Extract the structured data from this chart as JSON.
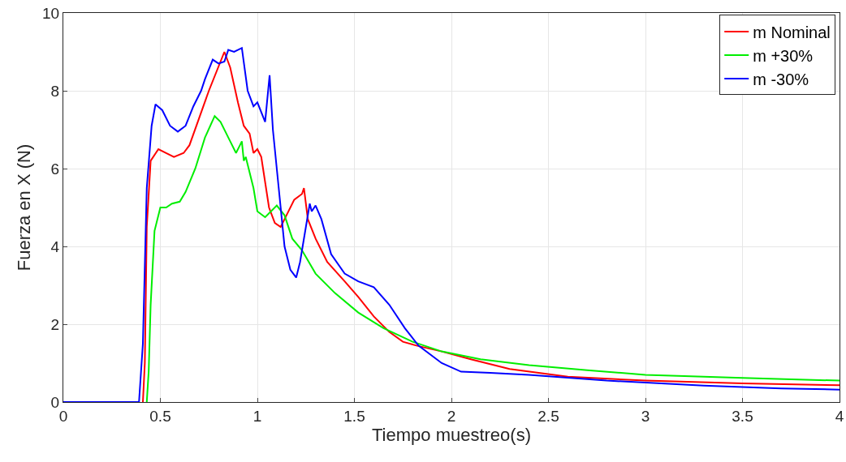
{
  "chart_data": {
    "type": "line",
    "xlabel": "Tiempo muestreo(s)",
    "ylabel": "Fuerza en X (N)",
    "xlim": [
      0,
      4
    ],
    "ylim": [
      0,
      10
    ],
    "xticks": [
      0,
      0.5,
      1,
      1.5,
      2,
      2.5,
      3,
      3.5,
      4
    ],
    "yticks": [
      0,
      2,
      4,
      6,
      8,
      10
    ],
    "grid": true,
    "legend": "top right",
    "marker": "none",
    "line_style": "solid",
    "series": [
      {
        "name": "m Nominal",
        "color": "#ff0000",
        "x": [
          0.41,
          0.42,
          0.43,
          0.45,
          0.49,
          0.53,
          0.57,
          0.62,
          0.65,
          0.7,
          0.75,
          0.79,
          0.83,
          0.86,
          0.9,
          0.93,
          0.96,
          0.98,
          1.0,
          1.02,
          1.06,
          1.09,
          1.12,
          1.15,
          1.19,
          1.23,
          1.24,
          1.26,
          1.3,
          1.36,
          1.45,
          1.52,
          1.6,
          1.68,
          1.75,
          1.82,
          1.95,
          2.1,
          2.3,
          2.6,
          3.0,
          3.5,
          4.0
        ],
        "values": [
          0,
          1.0,
          4.5,
          6.2,
          6.5,
          6.4,
          6.3,
          6.4,
          6.6,
          7.3,
          8.0,
          8.5,
          9.0,
          8.6,
          7.7,
          7.1,
          6.9,
          6.4,
          6.5,
          6.3,
          5.0,
          4.6,
          4.5,
          4.8,
          5.2,
          5.35,
          5.5,
          4.7,
          4.2,
          3.6,
          3.1,
          2.7,
          2.2,
          1.8,
          1.55,
          1.45,
          1.3,
          1.1,
          0.85,
          0.65,
          0.55,
          0.48,
          0.43
        ]
      },
      {
        "name": "m +30%",
        "color": "#00ee00",
        "x": [
          0.43,
          0.44,
          0.45,
          0.47,
          0.5,
          0.53,
          0.56,
          0.6,
          0.63,
          0.68,
          0.73,
          0.78,
          0.81,
          0.86,
          0.89,
          0.905,
          0.92,
          0.93,
          0.94,
          0.98,
          1.0,
          1.04,
          1.07,
          1.1,
          1.14,
          1.18,
          1.23,
          1.3,
          1.4,
          1.52,
          1.65,
          1.8,
          1.95,
          2.15,
          2.4,
          2.7,
          3.0,
          3.5,
          4.0
        ],
        "values": [
          0,
          0.8,
          2.5,
          4.4,
          5.0,
          5.0,
          5.1,
          5.15,
          5.4,
          6.0,
          6.8,
          7.35,
          7.2,
          6.7,
          6.4,
          6.55,
          6.7,
          6.2,
          6.3,
          5.5,
          4.9,
          4.75,
          4.9,
          5.05,
          4.8,
          4.2,
          3.9,
          3.3,
          2.8,
          2.3,
          1.9,
          1.55,
          1.3,
          1.1,
          0.95,
          0.82,
          0.7,
          0.62,
          0.55
        ]
      },
      {
        "name": "m -30%",
        "color": "#0000ff",
        "x": [
          0,
          0.39,
          0.41,
          0.43,
          0.455,
          0.475,
          0.51,
          0.55,
          0.59,
          0.63,
          0.67,
          0.71,
          0.73,
          0.77,
          0.8,
          0.83,
          0.85,
          0.88,
          0.92,
          0.95,
          0.98,
          1.0,
          1.04,
          1.063,
          1.08,
          1.11,
          1.14,
          1.17,
          1.2,
          1.22,
          1.25,
          1.27,
          1.28,
          1.3,
          1.33,
          1.38,
          1.45,
          1.52,
          1.6,
          1.68,
          1.76,
          1.83,
          1.95,
          2.05,
          2.2,
          2.4,
          2.8,
          3.3,
          3.7,
          4.0
        ],
        "values": [
          0,
          0,
          1.5,
          5.5,
          7.1,
          7.65,
          7.5,
          7.1,
          6.95,
          7.1,
          7.6,
          8.0,
          8.3,
          8.8,
          8.7,
          8.75,
          9.05,
          9.0,
          9.1,
          8.0,
          7.6,
          7.7,
          7.2,
          8.4,
          7.0,
          5.5,
          4.0,
          3.4,
          3.2,
          3.6,
          4.5,
          5.1,
          4.9,
          5.05,
          4.7,
          3.8,
          3.3,
          3.1,
          2.95,
          2.5,
          1.9,
          1.45,
          1.0,
          0.78,
          0.75,
          0.7,
          0.55,
          0.42,
          0.35,
          0.32
        ]
      }
    ]
  }
}
